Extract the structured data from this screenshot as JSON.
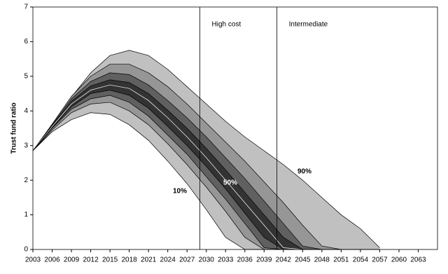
{
  "chart_data": {
    "type": "fan",
    "y_label": "Trust fund ratio",
    "x": [
      2003,
      2006,
      2009,
      2012,
      2015,
      2018,
      2021,
      2024,
      2027,
      2030,
      2033,
      2036,
      2039,
      2042,
      2045,
      2048,
      2051,
      2054,
      2057
    ],
    "series": [
      {
        "color": "#c0c0c0",
        "stroke": "#000000",
        "values": [
          2.85,
          3.6,
          4.4,
          5.1,
          5.6,
          5.75,
          5.6,
          5.2,
          4.7,
          4.2,
          3.7,
          3.25,
          2.85,
          2.45,
          2.0,
          1.5,
          1.0,
          0.6,
          0.05
        ]
      },
      {
        "color": "#969696",
        "stroke": "#000000",
        "values": [
          2.85,
          3.62,
          4.42,
          5.0,
          5.35,
          5.35,
          5.1,
          4.7,
          4.2,
          3.65,
          3.1,
          2.55,
          1.95,
          1.35,
          0.7,
          0.1,
          0,
          0,
          0
        ]
      },
      {
        "color": "#606060",
        "stroke": "#000000",
        "values": [
          2.85,
          3.6,
          4.35,
          4.85,
          5.1,
          5.05,
          4.75,
          4.3,
          3.8,
          3.25,
          2.65,
          2.05,
          1.4,
          0.75,
          0.1,
          0,
          0,
          0,
          0
        ]
      },
      {
        "color": "#333333",
        "stroke": "#000000",
        "values": [
          2.85,
          3.58,
          4.28,
          4.72,
          4.9,
          4.82,
          4.5,
          4.02,
          3.5,
          2.92,
          2.3,
          1.65,
          1.0,
          0.35,
          0,
          0,
          0,
          0,
          0
        ]
      },
      {
        "color": "#333333",
        "stroke": "#ffffff",
        "values": [
          2.85,
          3.55,
          4.2,
          4.6,
          4.75,
          4.65,
          4.3,
          3.8,
          3.25,
          2.65,
          2.0,
          1.35,
          0.7,
          0.05,
          0,
          0,
          0,
          0,
          0
        ]
      },
      {
        "color": "#606060",
        "stroke": "#000000",
        "values": [
          2.85,
          3.52,
          4.12,
          4.5,
          4.6,
          4.45,
          4.08,
          3.55,
          3.0,
          2.4,
          1.75,
          1.05,
          0.35,
          0,
          0,
          0,
          0,
          0,
          0
        ]
      },
      {
        "color": "#969696",
        "stroke": "#000000",
        "values": [
          2.85,
          3.5,
          4.05,
          4.35,
          4.45,
          4.25,
          3.85,
          3.3,
          2.75,
          2.1,
          1.45,
          0.75,
          0.05,
          0,
          0,
          0,
          0,
          0,
          0
        ]
      },
      {
        "color": "#c0c0c0",
        "stroke": "#000000",
        "values": [
          2.85,
          3.45,
          3.95,
          4.2,
          4.25,
          4.0,
          3.6,
          3.05,
          2.45,
          1.8,
          1.1,
          0.35,
          0,
          0,
          0,
          0,
          0,
          0,
          0
        ]
      },
      {
        "color": "#ffffff",
        "stroke": "#000000",
        "values": [
          2.85,
          3.4,
          3.75,
          3.95,
          3.9,
          3.6,
          3.15,
          2.55,
          1.9,
          1.15,
          0.35,
          0,
          0,
          0,
          0,
          0,
          0,
          0,
          0
        ]
      }
    ],
    "vlines": [
      {
        "x": 2029,
        "label": "High cost"
      },
      {
        "x": 2041,
        "label": "Intermediate"
      }
    ],
    "annotations": [
      "10%",
      "50%",
      "90%"
    ],
    "xlim": [
      2003,
      2066
    ],
    "xticks": [
      2003,
      2006,
      2009,
      2012,
      2015,
      2018,
      2021,
      2024,
      2027,
      2030,
      2033,
      2036,
      2039,
      2042,
      2045,
      2048,
      2051,
      2054,
      2057,
      2060,
      2063
    ],
    "ylim": [
      0,
      7
    ],
    "yticks": [
      0,
      1,
      2,
      3,
      4,
      5,
      6,
      7
    ]
  }
}
